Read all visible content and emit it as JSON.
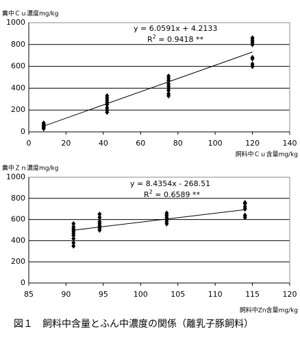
{
  "chart_data": [
    {
      "type": "scatter",
      "y_label": "糞中Ｃｕ濃度mg/kg",
      "x_label": "飼料中Ｃｕ含量mg/kg",
      "equation": "y = 6.0591x + 4.2133",
      "r2_prefix": "R",
      "r2_sup": "2",
      "r2_value": " = 0.9418  **",
      "xlim": [
        0,
        140
      ],
      "xticks": [
        0,
        20,
        40,
        60,
        80,
        100,
        120,
        140
      ],
      "ylim": [
        0,
        1000
      ],
      "yticks": [
        0,
        200,
        400,
        600,
        800,
        1000
      ],
      "grid": true,
      "color": "#000000",
      "x": [
        8,
        8,
        8,
        8,
        8,
        8,
        42,
        42,
        42,
        42,
        42,
        42,
        42,
        42,
        75,
        75,
        75,
        75,
        75,
        75,
        75,
        75,
        75,
        120,
        120,
        120,
        120,
        120,
        120,
        120,
        120
      ],
      "values": [
        30,
        40,
        50,
        60,
        70,
        80,
        180,
        200,
        220,
        250,
        270,
        290,
        310,
        330,
        330,
        350,
        380,
        400,
        420,
        440,
        470,
        490,
        510,
        600,
        620,
        670,
        680,
        800,
        820,
        840,
        860
      ],
      "trendline": {
        "x": [
          8,
          120
        ],
        "y": [
          53,
          731
        ]
      }
    },
    {
      "type": "scatter",
      "y_label": "糞中Ｚｎ濃度mg/kg",
      "x_label": "飼料中Zn含量mg/kg",
      "equation": "y = 8.4354x - 268.51",
      "r2_prefix": "R",
      "r2_sup": "2",
      "r2_value": " = 0.6589  **",
      "xlim": [
        85,
        120
      ],
      "xticks": [
        85,
        90,
        95,
        100,
        105,
        110,
        115,
        120
      ],
      "ylim": [
        0,
        1000
      ],
      "yticks": [
        0,
        200,
        400,
        600,
        800,
        1000
      ],
      "grid": true,
      "color": "#000000",
      "x": [
        91,
        91,
        91,
        91,
        91,
        91,
        91,
        91,
        91,
        94.5,
        94.5,
        94.5,
        94.5,
        94.5,
        94.5,
        94.5,
        103.5,
        103.5,
        103.5,
        103.5,
        103.5,
        103.5,
        114,
        114,
        114,
        114,
        114,
        114
      ],
      "values": [
        350,
        380,
        420,
        450,
        470,
        490,
        510,
        530,
        560,
        500,
        520,
        540,
        560,
        580,
        620,
        650,
        560,
        580,
        600,
        620,
        640,
        660,
        620,
        640,
        700,
        720,
        750,
        760
      ],
      "trendline": {
        "x": [
          91,
          114
        ],
        "y": [
          499,
          693
        ]
      }
    }
  ],
  "caption": "図１　飼料中含量とふん中濃度の関係（離乳子豚飼料）"
}
